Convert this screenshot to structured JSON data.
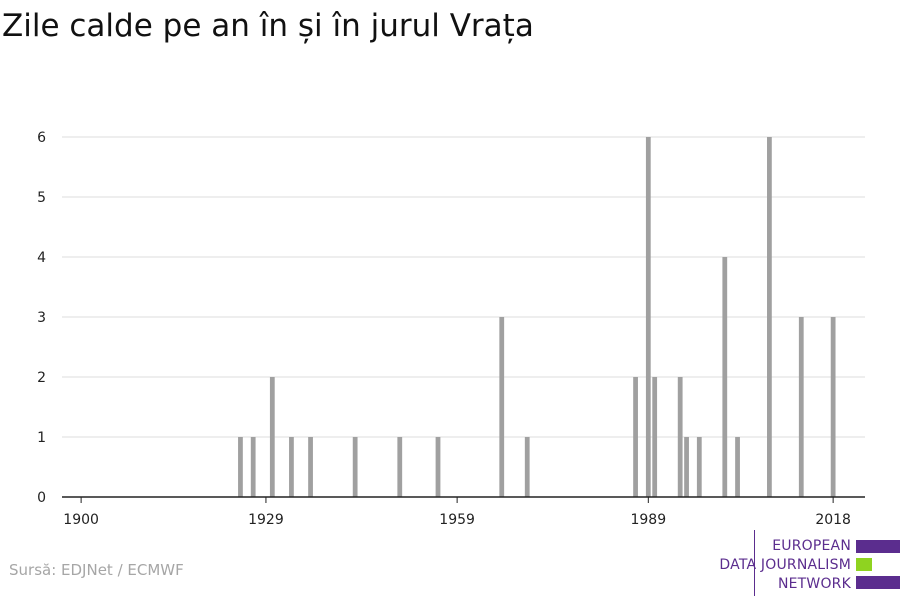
{
  "title": "Zile calde pe an în și în jurul Vrața",
  "source": "Sursă: EDJNet / ECMWF",
  "logo": {
    "lines": [
      "EUROPEAN",
      "DATA JOURNALISM",
      "NETWORK"
    ],
    "colors": {
      "purple": "#5b2d8e",
      "green": "#8fd320"
    }
  },
  "colors": {
    "bar": "#a0a0a0",
    "grid": "#dddddd",
    "axis": "#222222"
  },
  "chart_data": {
    "type": "bar",
    "title": "Zile calde pe an în și în jurul Vrața",
    "xlabel": "",
    "ylabel": "",
    "xlim": [
      1897,
      2023
    ],
    "ylim": [
      0,
      6
    ],
    "yticks": [
      "0",
      "1",
      "2",
      "3",
      "4",
      "5",
      "6"
    ],
    "xticks": [
      "1900",
      "1929",
      "1959",
      "1989",
      "2018"
    ],
    "grid": true,
    "x": [
      1925,
      1927,
      1930,
      1933,
      1936,
      1943,
      1950,
      1956,
      1966,
      1970,
      1987,
      1989,
      1990,
      1994,
      1995,
      1997,
      2001,
      2003,
      2008,
      2013,
      2018
    ],
    "values": [
      1,
      1,
      2,
      1,
      1,
      1,
      1,
      1,
      3,
      1,
      2,
      6,
      2,
      2,
      1,
      1,
      4,
      1,
      6,
      3,
      3
    ]
  }
}
